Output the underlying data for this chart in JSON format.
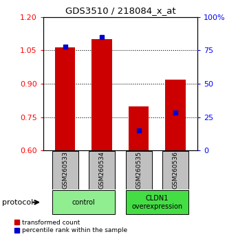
{
  "title": "GDS3510 / 218084_x_at",
  "samples": [
    "GSM260533",
    "GSM260534",
    "GSM260535",
    "GSM260536"
  ],
  "red_values": [
    1.065,
    1.1,
    0.8,
    0.92
  ],
  "blue_percentiles": [
    0.78,
    0.85,
    0.15,
    0.285
  ],
  "ylim_left": [
    0.6,
    1.2
  ],
  "ylim_right": [
    0,
    100
  ],
  "yticks_left": [
    0.6,
    0.75,
    0.9,
    1.05,
    1.2
  ],
  "yticks_right": [
    0,
    25,
    50,
    75,
    100
  ],
  "ytick_right_labels": [
    "0",
    "25",
    "50",
    "75",
    "100%"
  ],
  "groups": [
    {
      "label": "control",
      "start": 0,
      "end": 2,
      "color": "#90EE90"
    },
    {
      "label": "CLDN1\noverexpression",
      "start": 2,
      "end": 4,
      "color": "#44DD44"
    }
  ],
  "bar_color": "#CC0000",
  "marker_color": "#0000CC",
  "protocol_label": "protocol",
  "legend_red": "transformed count",
  "legend_blue": "percentile rank within the sample",
  "bar_width": 0.55,
  "sample_box_color": "#C0C0C0",
  "fig_width": 3.3,
  "fig_height": 3.54,
  "dpi": 100
}
